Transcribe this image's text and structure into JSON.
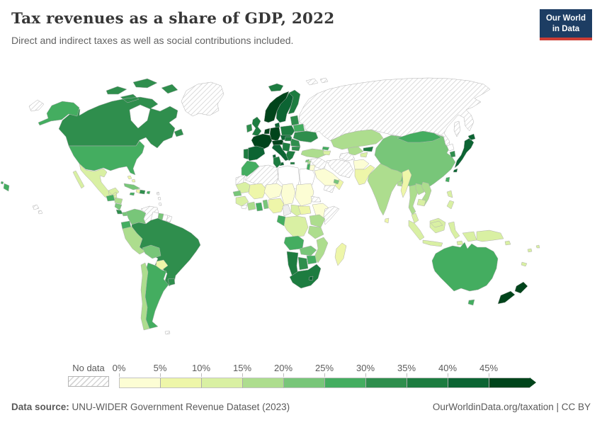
{
  "header": {
    "title": "Tax revenues as a share of GDP, 2022",
    "subtitle": "Direct and indirect taxes as well as social contributions included."
  },
  "logo": {
    "line1": "Our World",
    "line2": "in Data",
    "bg_color": "#1d3d63",
    "accent_color": "#cd3d34"
  },
  "legend": {
    "no_data_label": "No data",
    "tick_labels": [
      "0%",
      "5%",
      "10%",
      "15%",
      "20%",
      "25%",
      "30%",
      "35%",
      "40%",
      "45%"
    ],
    "bin_colors": [
      "#fcfdd4",
      "#eef6a9",
      "#d9f0a3",
      "#addd8e",
      "#78c679",
      "#44ad60",
      "#2f8e4d",
      "#1d7c40",
      "#0c6433",
      "#00441b"
    ]
  },
  "map": {
    "ocean_color": "#ffffff",
    "border_color": "#b0b0b0",
    "hatch_color": "#d2d2d2"
  },
  "footer": {
    "source_label": "Data source:",
    "source_text": "UNU-WIDER Government Revenue Dataset (2023)",
    "credit_text": "OurWorldinData.org/taxation | CC BY"
  },
  "chart_data": {
    "type": "heatmap",
    "subtype": "choropleth-world-map",
    "title": "Tax revenues as a share of GDP, 2022",
    "subtitle": "Direct and indirect taxes as well as social contributions included.",
    "unit": "% of GDP",
    "source": "UNU-WIDER Government Revenue Dataset (2023)",
    "no_data_label": "No data",
    "legend_bins": [
      {
        "label": "0-5%",
        "color": "#fcfdd4"
      },
      {
        "label": "5-10%",
        "color": "#eef6a9"
      },
      {
        "label": "10-15%",
        "color": "#d9f0a3"
      },
      {
        "label": "15-20%",
        "color": "#addd8e"
      },
      {
        "label": "20-25%",
        "color": "#78c679"
      },
      {
        "label": "25-30%",
        "color": "#44ad60"
      },
      {
        "label": "30-35%",
        "color": "#2f8e4d"
      },
      {
        "label": "35-40%",
        "color": "#1d7c40"
      },
      {
        "label": "40-45%",
        "color": "#0c6433"
      },
      {
        "label": "45%+",
        "color": "#00441b"
      }
    ],
    "regions": [
      {
        "id": "russia",
        "label": "Russia",
        "bin": "no-data",
        "value": "No data"
      },
      {
        "id": "greenland",
        "label": "Greenland",
        "bin": "no-data",
        "value": "No data"
      },
      {
        "id": "chukotka-west",
        "label": "Russia (far east)",
        "bin": "no-data",
        "value": "No data"
      },
      {
        "id": "svalbard",
        "label": "Svalbard",
        "bin": "no-data",
        "value": "No data"
      },
      {
        "id": "sakhalin",
        "label": "Sakhalin",
        "bin": "no-data",
        "value": "No data"
      },
      {
        "id": "venezuela",
        "label": "Venezuela",
        "bin": "no-data",
        "value": "No data"
      },
      {
        "id": "french-guiana",
        "label": "French Guiana",
        "bin": "no-data",
        "value": "No data"
      },
      {
        "id": "lesser-antilles",
        "label": "Lesser Antilles",
        "bin": "no-data",
        "value": "No data"
      },
      {
        "id": "falkland-islands",
        "label": "Falkland Islands",
        "bin": "no-data",
        "value": "No data"
      },
      {
        "id": "hawaii",
        "label": "Hawaii",
        "bin": "no-data",
        "value": "No data"
      },
      {
        "id": "western-sahara",
        "label": "Western Sahara",
        "bin": "no-data",
        "value": "No data"
      },
      {
        "id": "algeria",
        "label": "Algeria",
        "bin": "no-data",
        "value": "No data"
      },
      {
        "id": "eritrea",
        "label": "Eritrea",
        "bin": "no-data",
        "value": "No data"
      },
      {
        "id": "somalia",
        "label": "Somalia",
        "bin": "no-data",
        "value": "No data"
      },
      {
        "id": "syria-iraq",
        "label": "Syria / Iraq",
        "bin": "no-data",
        "value": "No data"
      },
      {
        "id": "yemen",
        "label": "Yemen",
        "bin": "no-data",
        "value": "No data"
      },
      {
        "id": "iran",
        "label": "Iran",
        "bin": "no-data",
        "value": "No data"
      },
      {
        "id": "turkmenistan",
        "label": "Turkmenistan",
        "bin": "no-data",
        "value": "No data"
      },
      {
        "id": "hudson-bay",
        "label": "Hudson Bay",
        "bin": "water",
        "value": ""
      },
      {
        "id": "libya",
        "label": "Libya",
        "bin": "none",
        "value": ""
      },
      {
        "id": "egypt",
        "label": "Egypt",
        "bin": "none",
        "value": ""
      },
      {
        "id": "suriname",
        "label": "Suriname",
        "bin": "none",
        "value": ""
      },
      {
        "id": "north-korea",
        "label": "North Korea",
        "bin": "none",
        "value": ""
      },
      {
        "id": "liberia",
        "label": "Liberia",
        "bin": "none",
        "value": ""
      },
      {
        "id": "niger",
        "label": "Niger",
        "bin": 1,
        "value": "0-5%"
      },
      {
        "id": "chad",
        "label": "Chad",
        "bin": 1,
        "value": "0-5%"
      },
      {
        "id": "sudan",
        "label": "Sudan",
        "bin": 1,
        "value": "0-5%"
      },
      {
        "id": "ethiopia",
        "label": "Ethiopia",
        "bin": 1,
        "value": "0-5%"
      },
      {
        "id": "jordan",
        "label": "Jordan",
        "bin": 1,
        "value": "0-5%"
      },
      {
        "id": "saudi-arabia",
        "label": "Saudi Arabia",
        "bin": 1,
        "value": "0-5%"
      },
      {
        "id": "afghanistan",
        "label": "Afghanistan",
        "bin": 1,
        "value": "0-5%"
      },
      {
        "id": "haiti",
        "label": "Haiti",
        "bin": 2,
        "value": "5-10%"
      },
      {
        "id": "bahamas",
        "label": "Bahamas",
        "bin": 2,
        "value": "5-10%"
      },
      {
        "id": "paraguay",
        "label": "Paraguay",
        "bin": 2,
        "value": "5-10%"
      },
      {
        "id": "mali",
        "label": "Mali",
        "bin": 2,
        "value": "5-10%"
      },
      {
        "id": "south-sudan",
        "label": "South Sudan",
        "bin": 2,
        "value": "5-10%"
      },
      {
        "id": "nigeria",
        "label": "Nigeria",
        "bin": 2,
        "value": "5-10%"
      },
      {
        "id": "madagascar",
        "label": "Madagascar",
        "bin": 2,
        "value": "5-10%"
      },
      {
        "id": "oman",
        "label": "Oman",
        "bin": 2,
        "value": "5-10%"
      },
      {
        "id": "pakistan",
        "label": "Pakistan",
        "bin": 2,
        "value": "5-10%"
      },
      {
        "id": "myanmar",
        "label": "Myanmar",
        "bin": 2,
        "value": "5-10%"
      },
      {
        "id": "sri-lanka",
        "label": "Sri Lanka",
        "bin": 2,
        "value": "5-10%"
      },
      {
        "id": "mexico",
        "label": "Mexico",
        "bin": 3,
        "value": "10-15%"
      },
      {
        "id": "mauritania",
        "label": "Mauritania",
        "bin": 3,
        "value": "10-15%"
      },
      {
        "id": "guinea",
        "label": "Guinea",
        "bin": 3,
        "value": "10-15%"
      },
      {
        "id": "central-african-republic",
        "label": "Central African Republic",
        "bin": 3,
        "value": "10-15%"
      },
      {
        "id": "drc",
        "label": "Democratic Republic of Congo",
        "bin": 3,
        "value": "10-15%"
      },
      {
        "id": "armenia-azerbaijan",
        "label": "Armenia / Azerbaijan",
        "bin": 3,
        "value": "10-15%"
      },
      {
        "id": "tajikistan",
        "label": "Tajikistan",
        "bin": 3,
        "value": "10-15%"
      },
      {
        "id": "cambodia",
        "label": "Cambodia",
        "bin": 3,
        "value": "10-15%"
      },
      {
        "id": "malaysia",
        "label": "Malaysia",
        "bin": 3,
        "value": "10-15%"
      },
      {
        "id": "philippines",
        "label": "Philippines",
        "bin": 3,
        "value": "10-15%"
      },
      {
        "id": "indonesia",
        "label": "Indonesia",
        "bin": 3,
        "value": "10-15%"
      },
      {
        "id": "papua-new-guinea",
        "label": "Papua New Guinea",
        "bin": 3,
        "value": "10-15%"
      },
      {
        "id": "pacific-islands",
        "label": "Pacific Islands",
        "bin": 3,
        "value": "10-15%"
      },
      {
        "id": "honduras",
        "label": "Honduras",
        "bin": 4,
        "value": "15-20%"
      },
      {
        "id": "peru",
        "label": "Peru",
        "bin": 4,
        "value": "15-20%"
      },
      {
        "id": "chile",
        "label": "Chile",
        "bin": 4,
        "value": "15-20%"
      },
      {
        "id": "ivory-coast",
        "label": "Côte d'Ivoire",
        "bin": 4,
        "value": "15-20%"
      },
      {
        "id": "uganda-kenya",
        "label": "Uganda / Kenya",
        "bin": 4,
        "value": "15-20%"
      },
      {
        "id": "tanzania",
        "label": "Tanzania",
        "bin": 4,
        "value": "15-20%"
      },
      {
        "id": "mozambique",
        "label": "Mozambique",
        "bin": 4,
        "value": "15-20%"
      },
      {
        "id": "turkey",
        "label": "Turkey",
        "bin": 4,
        "value": "15-20%"
      },
      {
        "id": "lebanon",
        "label": "Lebanon",
        "bin": 4,
        "value": "15-20%"
      },
      {
        "id": "uzbekistan",
        "label": "Uzbekistan",
        "bin": 4,
        "value": "15-20%"
      },
      {
        "id": "kazakhstan",
        "label": "Kazakhstan",
        "bin": 4,
        "value": "15-20%"
      },
      {
        "id": "india",
        "label": "India",
        "bin": 4,
        "value": "15-20%"
      },
      {
        "id": "bangladesh",
        "label": "Bangladesh",
        "bin": 4,
        "value": "15-20%"
      },
      {
        "id": "thailand",
        "label": "Thailand",
        "bin": 4,
        "value": "15-20%"
      },
      {
        "id": "laos",
        "label": "Laos",
        "bin": 4,
        "value": "15-20%"
      },
      {
        "id": "vietnam",
        "label": "Vietnam",
        "bin": 4,
        "value": "15-20%"
      },
      {
        "id": "nicaragua",
        "label": "Nicaragua",
        "bin": 5,
        "value": "20-25%"
      },
      {
        "id": "panama",
        "label": "Panama",
        "bin": 5,
        "value": "20-25%"
      },
      {
        "id": "cuba",
        "label": "Cuba",
        "bin": 5,
        "value": "20-25%"
      },
      {
        "id": "colombia",
        "label": "Colombia",
        "bin": 5,
        "value": "20-25%"
      },
      {
        "id": "guyana",
        "label": "Guyana",
        "bin": 5,
        "value": "20-25%"
      },
      {
        "id": "bolivia",
        "label": "Bolivia",
        "bin": 5,
        "value": "20-25%"
      },
      {
        "id": "senegal",
        "label": "Senegal",
        "bin": 5,
        "value": "20-25%"
      },
      {
        "id": "togo-benin",
        "label": "Togo / Benin",
        "bin": 5,
        "value": "20-25%"
      },
      {
        "id": "zambia",
        "label": "Zambia",
        "bin": 5,
        "value": "20-25%"
      },
      {
        "id": "uae-qatar",
        "label": "UAE / Qatar",
        "bin": 5,
        "value": "20-25%"
      },
      {
        "id": "china",
        "label": "China",
        "bin": 5,
        "value": "20-25%"
      },
      {
        "id": "cyprus",
        "label": "Cyprus",
        "bin": 5,
        "value": "20-25%"
      },
      {
        "id": "usa",
        "label": "United States",
        "bin": 6,
        "value": "25-30%"
      },
      {
        "id": "left-edge-islands",
        "label": "Aleutian Islands",
        "bin": 6,
        "value": "25-30%"
      },
      {
        "id": "guatemala",
        "label": "Guatemala",
        "bin": 6,
        "value": "25-30%"
      },
      {
        "id": "jamaica",
        "label": "Jamaica",
        "bin": 6,
        "value": "25-30%"
      },
      {
        "id": "puerto-rico",
        "label": "Puerto Rico",
        "bin": 6,
        "value": "25-30%"
      },
      {
        "id": "ecuador",
        "label": "Ecuador",
        "bin": 6,
        "value": "25-30%"
      },
      {
        "id": "argentina",
        "label": "Argentina",
        "bin": 6,
        "value": "25-30%"
      },
      {
        "id": "morocco",
        "label": "Morocco",
        "bin": 6,
        "value": "25-30%"
      },
      {
        "id": "ghana",
        "label": "Ghana",
        "bin": 6,
        "value": "25-30%"
      },
      {
        "id": "gabon-congo",
        "label": "Gabon / Congo",
        "bin": 6,
        "value": "25-30%"
      },
      {
        "id": "angola",
        "label": "Angola",
        "bin": 6,
        "value": "25-30%"
      },
      {
        "id": "zimbabwe",
        "label": "Zimbabwe",
        "bin": 6,
        "value": "25-30%"
      },
      {
        "id": "belarus",
        "label": "Belarus",
        "bin": 6,
        "value": "25-30%"
      },
      {
        "id": "georgia",
        "label": "Georgia",
        "bin": 6,
        "value": "25-30%"
      },
      {
        "id": "israel",
        "label": "Israel",
        "bin": 6,
        "value": "25-30%"
      },
      {
        "id": "mongolia",
        "label": "Mongolia",
        "bin": 6,
        "value": "25-30%"
      },
      {
        "id": "taiwan",
        "label": "Taiwan",
        "bin": 6,
        "value": "25-30%"
      },
      {
        "id": "australia",
        "label": "Australia",
        "bin": 6,
        "value": "25-30%"
      },
      {
        "id": "canada",
        "label": "Canada",
        "bin": 7,
        "value": "30-35%"
      },
      {
        "id": "costa-rica",
        "label": "Costa Rica",
        "bin": 7,
        "value": "30-35%"
      },
      {
        "id": "dominican-republic",
        "label": "Dominican Republic",
        "bin": 7,
        "value": "30-35%"
      },
      {
        "id": "uruguay",
        "label": "Uruguay",
        "bin": 7,
        "value": "30-35%"
      },
      {
        "id": "brazil",
        "label": "Brazil",
        "bin": 7,
        "value": "30-35%"
      },
      {
        "id": "ireland",
        "label": "Ireland",
        "bin": 7,
        "value": "30-35%"
      },
      {
        "id": "baltics",
        "label": "Baltic states",
        "bin": 7,
        "value": "30-35%"
      },
      {
        "id": "ukraine",
        "label": "Ukraine",
        "bin": 7,
        "value": "30-35%"
      },
      {
        "id": "romania",
        "label": "Romania / Moldova",
        "bin": 7,
        "value": "30-35%"
      },
      {
        "id": "bulgaria",
        "label": "Bulgaria",
        "bin": 7,
        "value": "30-35%"
      },
      {
        "id": "south-korea",
        "label": "South Korea",
        "bin": 7,
        "value": "30-35%"
      },
      {
        "id": "botswana",
        "label": "Botswana",
        "bin": 7,
        "value": "30-35%"
      },
      {
        "id": "iceland",
        "label": "Iceland",
        "bin": 8,
        "value": "35-40%"
      },
      {
        "id": "uk",
        "label": "United Kingdom",
        "bin": 8,
        "value": "35-40%"
      },
      {
        "id": "finland",
        "label": "Finland",
        "bin": 8,
        "value": "35-40%"
      },
      {
        "id": "poland",
        "label": "Poland",
        "bin": 8,
        "value": "35-40%"
      },
      {
        "id": "hungary",
        "label": "Hungary",
        "bin": 8,
        "value": "35-40%"
      },
      {
        "id": "balkans",
        "label": "Balkans",
        "bin": 8,
        "value": "35-40%"
      },
      {
        "id": "greece",
        "label": "Greece",
        "bin": 8,
        "value": "35-40%"
      },
      {
        "id": "portugal",
        "label": "Portugal",
        "bin": 8,
        "value": "35-40%"
      },
      {
        "id": "tunisia",
        "label": "Tunisia",
        "bin": 8,
        "value": "35-40%"
      },
      {
        "id": "namibia",
        "label": "Namibia",
        "bin": 8,
        "value": "35-40%"
      },
      {
        "id": "south-africa",
        "label": "South Africa",
        "bin": 8,
        "value": "35-40%"
      },
      {
        "id": "kyrgyzstan",
        "label": "Kyrgyzstan",
        "bin": 8,
        "value": "35-40%"
      },
      {
        "id": "sweden",
        "label": "Sweden",
        "bin": 9,
        "value": "40-45%"
      },
      {
        "id": "denmark",
        "label": "Denmark",
        "bin": 9,
        "value": "40-45%"
      },
      {
        "id": "spain",
        "label": "Spain",
        "bin": 9,
        "value": "40-45%"
      },
      {
        "id": "italy",
        "label": "Italy",
        "bin": 9,
        "value": "40-45%"
      },
      {
        "id": "czech-slovakia",
        "label": "Czechia / Slovakia",
        "bin": 9,
        "value": "40-45%"
      },
      {
        "id": "japan",
        "label": "Japan",
        "bin": 9,
        "value": "40-45%"
      },
      {
        "id": "lesotho",
        "label": "Lesotho",
        "bin": 9,
        "value": "40-45%"
      },
      {
        "id": "norway",
        "label": "Norway",
        "bin": 10,
        "value": "45%+"
      },
      {
        "id": "france",
        "label": "France",
        "bin": 10,
        "value": "45%+"
      },
      {
        "id": "germany",
        "label": "Germany",
        "bin": 10,
        "value": "45%+"
      },
      {
        "id": "netherlands-belgium",
        "label": "Netherlands / Belgium",
        "bin": 10,
        "value": "45%+"
      },
      {
        "id": "switzerland-austria",
        "label": "Switzerland / Austria",
        "bin": 10,
        "value": "45%+"
      },
      {
        "id": "new-zealand",
        "label": "New Zealand",
        "bin": 10,
        "value": "45%+"
      }
    ]
  }
}
